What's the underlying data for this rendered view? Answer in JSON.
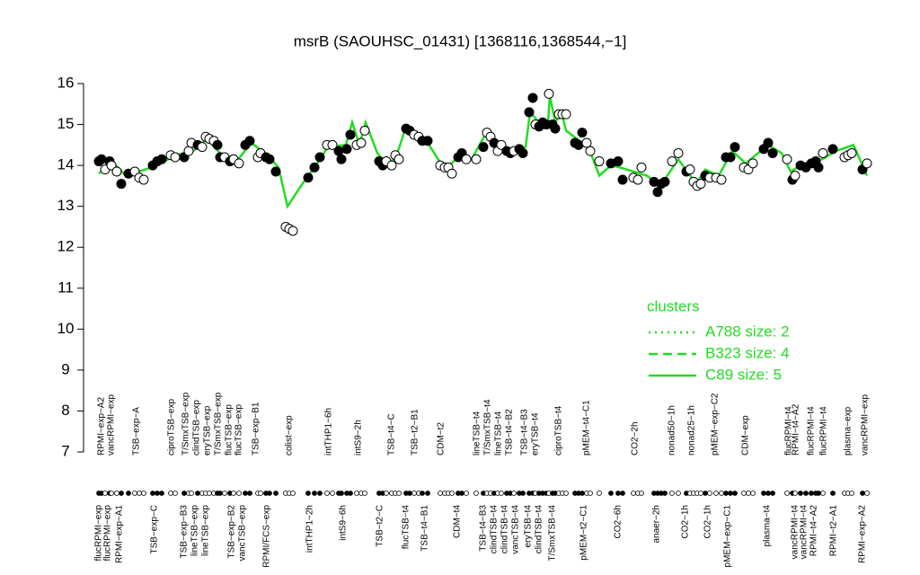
{
  "chart_data": {
    "type": "scatter",
    "title": "msrB (SAOUHSC_01431) [1368116,1368544,−1]",
    "ylim": [
      7,
      16
    ],
    "yticks": [
      7,
      8,
      9,
      10,
      11,
      12,
      13,
      14,
      15,
      16
    ],
    "xlim": [
      100,
      970
    ],
    "point_color": "#000000",
    "x": [
      110,
      113,
      117,
      122,
      124,
      130,
      135,
      143,
      150,
      155,
      160,
      170,
      175,
      180,
      190,
      195,
      205,
      210,
      213,
      220,
      225,
      229,
      233,
      238,
      242,
      245,
      250,
      256,
      260,
      266,
      273,
      278,
      287,
      290,
      296,
      300,
      307,
      318,
      322,
      326,
      343,
      350,
      356,
      364,
      370,
      377,
      380,
      386,
      390,
      397,
      402,
      406,
      422,
      426,
      430,
      436,
      440,
      444,
      452,
      456,
      461,
      466,
      470,
      476,
      490,
      495,
      499,
      503,
      510,
      514,
      519,
      530,
      538,
      542,
      546,
      550,
      554,
      558,
      564,
      568,
      572,
      578,
      582,
      589,
      593,
      596,
      600,
      604,
      608,
      611,
      615,
      618,
      622,
      626,
      630,
      640,
      644,
      648,
      653,
      657,
      667,
      680,
      688,
      693,
      705,
      710,
      714,
      728,
      732,
      736,
      740,
      748,
      755,
      764,
      768,
      772,
      776,
      780,
      785,
      790,
      797,
      803,
      808,
      813,
      818,
      828,
      833,
      838,
      850,
      855,
      860,
      876,
      882,
      885,
      891,
      897,
      903,
      908,
      911,
      916,
      927,
      940,
      944,
      948,
      960,
      965
    ],
    "values": [
      14.1,
      14.15,
      13.9,
      14.1,
      14.0,
      13.85,
      13.55,
      13.8,
      13.85,
      13.7,
      13.65,
      14.0,
      14.1,
      14.15,
      14.25,
      14.2,
      14.2,
      14.35,
      14.55,
      14.5,
      14.45,
      14.7,
      14.65,
      14.6,
      14.5,
      14.2,
      14.2,
      14.1,
      14.15,
      14.05,
      14.5,
      14.6,
      14.2,
      14.3,
      14.2,
      14.15,
      13.85,
      12.5,
      12.45,
      12.4,
      13.7,
      13.95,
      14.2,
      14.5,
      14.5,
      14.35,
      14.15,
      14.4,
      14.75,
      14.5,
      14.55,
      14.85,
      14.1,
      14.0,
      14.1,
      14.0,
      14.25,
      14.15,
      14.9,
      14.85,
      14.75,
      14.7,
      14.6,
      14.6,
      14.0,
      13.95,
      13.95,
      13.8,
      14.2,
      14.3,
      14.15,
      14.15,
      14.45,
      14.8,
      14.7,
      14.55,
      14.35,
      14.5,
      14.35,
      14.3,
      14.35,
      14.4,
      14.3,
      15.3,
      15.65,
      15.0,
      14.95,
      15.05,
      15.0,
      15.75,
      15.0,
      14.9,
      15.25,
      15.25,
      15.25,
      14.55,
      14.5,
      14.8,
      14.55,
      14.35,
      14.1,
      14.05,
      14.1,
      13.65,
      13.7,
      13.65,
      13.95,
      13.6,
      13.35,
      13.55,
      13.6,
      14.1,
      14.3,
      13.85,
      13.9,
      13.6,
      13.5,
      13.55,
      13.75,
      13.7,
      13.7,
      13.65,
      14.2,
      14.2,
      14.45,
      13.95,
      13.9,
      14.05,
      14.4,
      14.55,
      14.3,
      14.15,
      13.65,
      13.75,
      14.0,
      13.95,
      14.05,
      14.1,
      13.95,
      14.3,
      14.4,
      14.2,
      14.25,
      14.3,
      13.9,
      14.05
    ],
    "filled": [
      true,
      true,
      false,
      true,
      false,
      false,
      true,
      true,
      false,
      false,
      false,
      true,
      true,
      true,
      false,
      false,
      true,
      false,
      false,
      true,
      false,
      false,
      false,
      false,
      true,
      true,
      false,
      true,
      false,
      false,
      true,
      true,
      false,
      false,
      true,
      true,
      true,
      false,
      false,
      false,
      true,
      true,
      true,
      false,
      false,
      true,
      true,
      true,
      true,
      false,
      false,
      false,
      true,
      true,
      false,
      false,
      false,
      false,
      true,
      true,
      false,
      false,
      true,
      true,
      false,
      false,
      false,
      false,
      true,
      true,
      false,
      false,
      true,
      false,
      false,
      true,
      false,
      false,
      true,
      true,
      false,
      true,
      true,
      true,
      true,
      false,
      true,
      true,
      true,
      false,
      true,
      true,
      false,
      false,
      false,
      true,
      true,
      true,
      false,
      false,
      false,
      true,
      true,
      true,
      false,
      false,
      false,
      true,
      true,
      true,
      true,
      false,
      false,
      true,
      false,
      false,
      false,
      false,
      true,
      false,
      false,
      false,
      true,
      true,
      true,
      false,
      false,
      false,
      true,
      true,
      true,
      false,
      true,
      false,
      true,
      true,
      true,
      true,
      true,
      false,
      true,
      false,
      false,
      false,
      true,
      false
    ],
    "line": {
      "color": "#22dd22",
      "x": [
        110,
        125,
        140,
        155,
        175,
        195,
        215,
        230,
        245,
        265,
        280,
        300,
        310,
        320,
        335,
        350,
        365,
        385,
        392,
        400,
        407,
        420,
        430,
        440,
        452,
        465,
        476,
        495,
        510,
        525,
        540,
        555,
        575,
        585,
        590,
        600,
        610,
        612,
        618,
        625,
        630,
        645,
        655,
        667,
        680,
        690,
        705,
        720,
        735,
        755,
        765,
        775,
        785,
        800,
        815,
        830,
        855,
        870,
        880,
        895,
        915,
        930,
        950,
        965
      ],
      "values": [
        13.8,
        14.1,
        13.75,
        13.85,
        14.0,
        14.25,
        14.35,
        14.65,
        14.3,
        14.15,
        14.55,
        14.2,
        13.95,
        13.0,
        13.5,
        13.95,
        14.45,
        14.5,
        15.05,
        14.5,
        15.05,
        14.3,
        14.05,
        14.15,
        14.95,
        14.7,
        14.55,
        13.9,
        14.2,
        14.15,
        14.75,
        14.45,
        14.35,
        14.45,
        15.3,
        15.05,
        15.05,
        15.7,
        15.05,
        15.3,
        14.85,
        14.6,
        14.45,
        13.75,
        14.0,
        13.95,
        13.85,
        13.75,
        13.5,
        14.15,
        13.85,
        13.55,
        13.9,
        13.75,
        14.35,
        14.05,
        14.5,
        14.3,
        13.85,
        14.05,
        14.15,
        14.35,
        14.5,
        13.75
      ]
    },
    "labels_top": {
      "x": [
        113,
        124,
        152,
        191,
        207,
        219,
        231,
        243,
        255,
        266,
        285,
        322,
        366,
        399,
        436,
        462,
        491,
        531,
        543,
        555,
        567,
        584,
        596,
        622,
        653,
        707,
        748,
        770,
        796,
        830,
        878,
        886,
        903,
        917,
        944,
        963
      ],
      "text": [
        "RPMI−exp−A2",
        "vancRPMI−exp",
        "TSB−exp−A",
        "ciproTSB−exp",
        "T/SmxTSB−exp",
        "clindTSB−exp",
        "eryTSB−exp",
        "T/SmxTSB−exp",
        "flucTSB−exp",
        "flucTSB−exp",
        "TSB−exp−B1",
        "colist−exp",
        "intTHP1−6h",
        "intS9−2h",
        "TSB−t4−C",
        "TSB−t2−B1",
        "CDM−t2",
        "lineTSB−t4",
        "T/SmxTSB−t4",
        "lineTSB−t4",
        "TSB−t4−B2",
        "TSB−t4−B3",
        "eryTSB−t4",
        "ciproTSB−t4",
        "pMEM−t4−C1",
        "CO2−2h",
        "nonad50−1h",
        "nonad25−1h",
        "pMEM−exp−C2",
        "CDM−exp",
        "flucRPMI−t4",
        "RPMI−t4−A2",
        "flucRPMI−t4",
        "flucRPMI−t4",
        "plasma−exp",
        "vancRPMI−exp"
      ]
    },
    "labels_bottom": {
      "x": [
        110,
        120,
        133,
        172,
        205,
        217,
        229,
        258,
        270,
        297,
        345,
        382,
        423,
        452,
        473,
        509,
        538,
        550,
        562,
        574,
        588,
        600,
        615,
        650,
        688,
        731,
        763,
        788,
        810,
        854,
        885,
        895,
        906,
        928,
        960
      ],
      "text": [
        "flucRPMI−exp",
        "flucRPMI−exp",
        "RPMI−exp−A1",
        "TSB−exp−C",
        "TSB−exp−B3",
        "lineTSB−exp",
        "lineTSB−exp",
        "TSB−exp−B2",
        "vancTSB−exp",
        "RPMI/FCS−exp",
        "intTHP1−2h",
        "intS9−6h",
        "TSB−t2−C",
        "flucTSB−t4",
        "TSB−t4−B1",
        "CDM−t4",
        "TSB−t4−B3",
        "clindTSB−t4",
        "clindTSB−t4",
        "vancTSB−t4",
        "eryTSB−t4",
        "clindTSB−t4",
        "T/SmxTSB−t4",
        "pMEM−t2−C1",
        "CO2−6h",
        "anaer−2h",
        "CO2−1h",
        "CO2−1h",
        "pMEM−exp−C1",
        "plasma−t4",
        "vancRPMI−t4",
        "vancRPMI−t4",
        "RPMI−t4−A2",
        "RPMI−t2−A1",
        "RPMI−exp−A2"
      ]
    },
    "legend": {
      "title": "clusters",
      "color": "#22dd22",
      "entries": [
        {
          "label": "A788 size: 2",
          "style": "dotted"
        },
        {
          "label": "B323 size: 4",
          "style": "dashed"
        },
        {
          "label": "C89 size: 5",
          "style": "solid"
        }
      ]
    }
  }
}
